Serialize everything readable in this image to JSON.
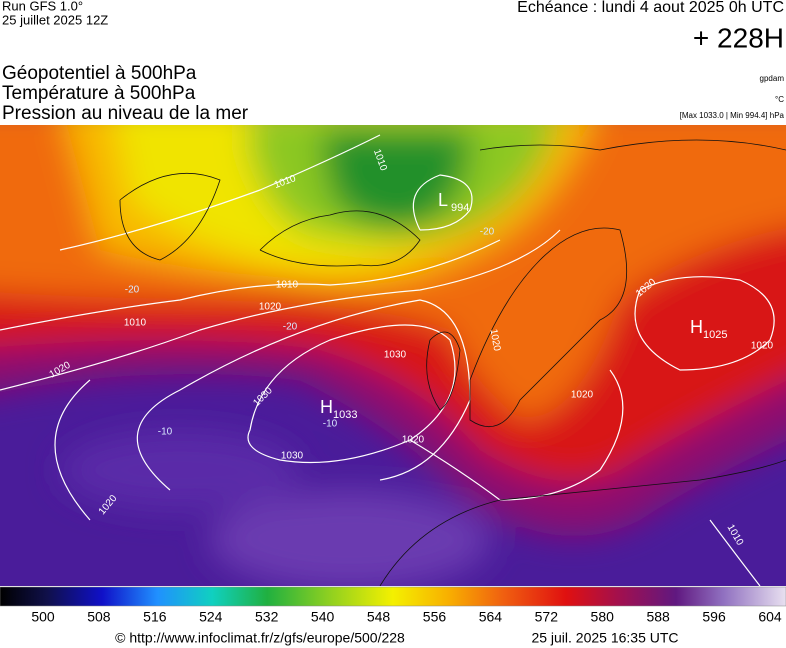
{
  "header": {
    "run": "Run GFS 1.0°",
    "run_date": "25 juillet 2025 12Z",
    "valid": "Echéance : lundi 4 aout 2025 0h UTC",
    "lead": "+ 228H"
  },
  "layers": [
    "Géopotentiel à 500hPa",
    "Température à 500hPa",
    "Pression au niveau de la mer"
  ],
  "units": [
    "gpdam",
    "°C",
    "[Max 1033.0 | Min 994.4] hPa"
  ],
  "centers": [
    {
      "kind": "L",
      "value": "994"
    },
    {
      "kind": "H",
      "value": "1033"
    },
    {
      "kind": "H",
      "value": "1025"
    }
  ],
  "isobar_labels": [
    "1010",
    "1010",
    "1010",
    "1010",
    "1020",
    "1020",
    "1030",
    "1030",
    "1030",
    "1020",
    "1020",
    "1020",
    "1020",
    "1020",
    "1020",
    "1010",
    "-20",
    "-20",
    "-20",
    "-10",
    "-10"
  ],
  "scale": {
    "labels": [
      500,
      508,
      516,
      524,
      532,
      540,
      548,
      556,
      564,
      572,
      580,
      588,
      596,
      604
    ]
  },
  "footer": {
    "source": "© http://www.infoclimat.fr/z/gfs/europe/500/228",
    "generated": "25 juil. 2025 16:35 UTC"
  }
}
